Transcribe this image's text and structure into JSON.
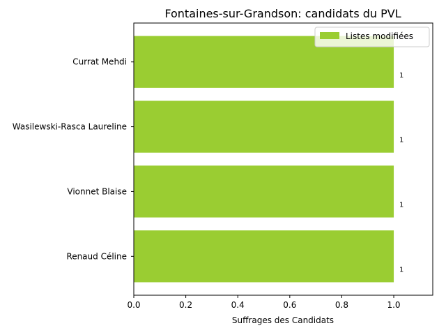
{
  "chart_data": {
    "type": "bar",
    "orientation": "horizontal",
    "title": "Fontaines-sur-Grandson: candidats du PVL",
    "xlabel": "Suffrages des Candidats",
    "ylabel": "",
    "categories": [
      "Currat Mehdi",
      "Wasilewski-Rasca Laureline",
      "Vionnet Blaise",
      "Renaud Céline"
    ],
    "series": [
      {
        "name": "Listes modifiées",
        "values": [
          1,
          1,
          1,
          1
        ],
        "color": "#9acd32"
      }
    ],
    "data_labels": [
      "1",
      "1",
      "1",
      "1"
    ],
    "xlim": [
      0,
      1.15
    ],
    "x_ticks": [
      0.0,
      0.2,
      0.4,
      0.6,
      0.8,
      1.0
    ],
    "x_tick_labels": [
      "0.0",
      "0.2",
      "0.4",
      "0.6",
      "0.8",
      "1.0"
    ],
    "grid": false,
    "legend_position": "top-right"
  }
}
